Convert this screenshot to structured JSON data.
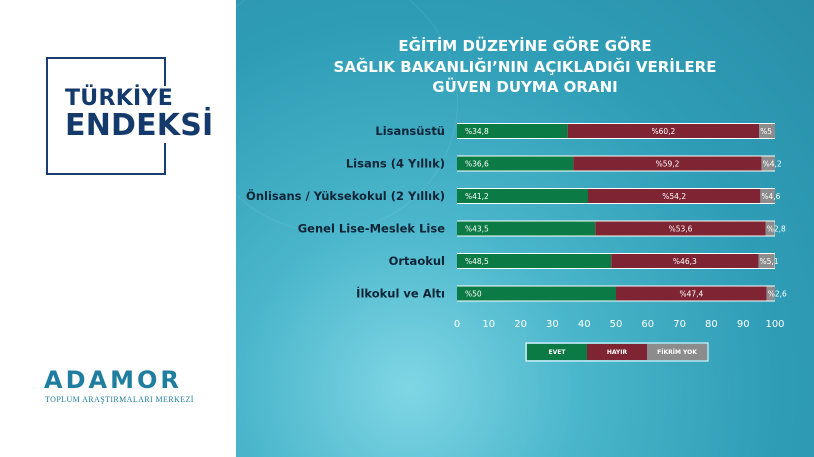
{
  "title_lines": [
    "EĞİTİM DÜZEYİNE GÖRE GÖRE",
    "SAĞLIK BAKANLIĞI’NIN AÇIKLADIĞI VERİLERE",
    "GÜVEN DUYMA ORANI"
  ],
  "brand": {
    "line1": "TÜRKİYE",
    "line2": "ENDEKSİ"
  },
  "logo": {
    "word": "ADAMOR",
    "subtitle": "TOPLUM ARAŞTIRMALARI MERKEZİ"
  },
  "colors": {
    "evet": "#0b7a44",
    "hayir": "#7e2433",
    "fikrim_yok": "#8c8c8c"
  },
  "chart_data": {
    "type": "bar",
    "orientation": "horizontal",
    "stacked": true,
    "categories": [
      "Lisansüstü",
      "Lisans (4 Yıllık)",
      "Önlisans / Yüksekokul (2 Yıllık)",
      "Genel Lise-Meslek Lise",
      "Ortaokul",
      "İlkokul ve Altı"
    ],
    "series": [
      {
        "name": "EVET",
        "values": [
          34.8,
          36.6,
          41.2,
          43.5,
          48.5,
          50
        ],
        "labels": [
          "%34,8",
          "%36,6",
          "%41,2",
          "%43,5",
          "%48,5",
          "%50"
        ]
      },
      {
        "name": "HAYIR",
        "values": [
          60.2,
          59.2,
          54.2,
          53.6,
          46.3,
          47.4
        ],
        "labels": [
          "%60,2",
          "%59,2",
          "%54,2",
          "%53,6",
          "%46,3",
          "%47,4"
        ]
      },
      {
        "name": "FİKRİM YOK",
        "values": [
          5,
          4.2,
          4.6,
          2.8,
          5.1,
          2.6
        ],
        "labels": [
          "%5",
          "%4,2",
          "%4,6",
          "%2,8",
          "%5,1",
          "%2,6"
        ]
      }
    ],
    "xlim": [
      0,
      100
    ],
    "x_ticks": [
      "0",
      "10",
      "20",
      "30",
      "40",
      "50",
      "60",
      "70",
      "80",
      "90",
      "100"
    ],
    "legend_position": "bottom",
    "grid": false
  }
}
